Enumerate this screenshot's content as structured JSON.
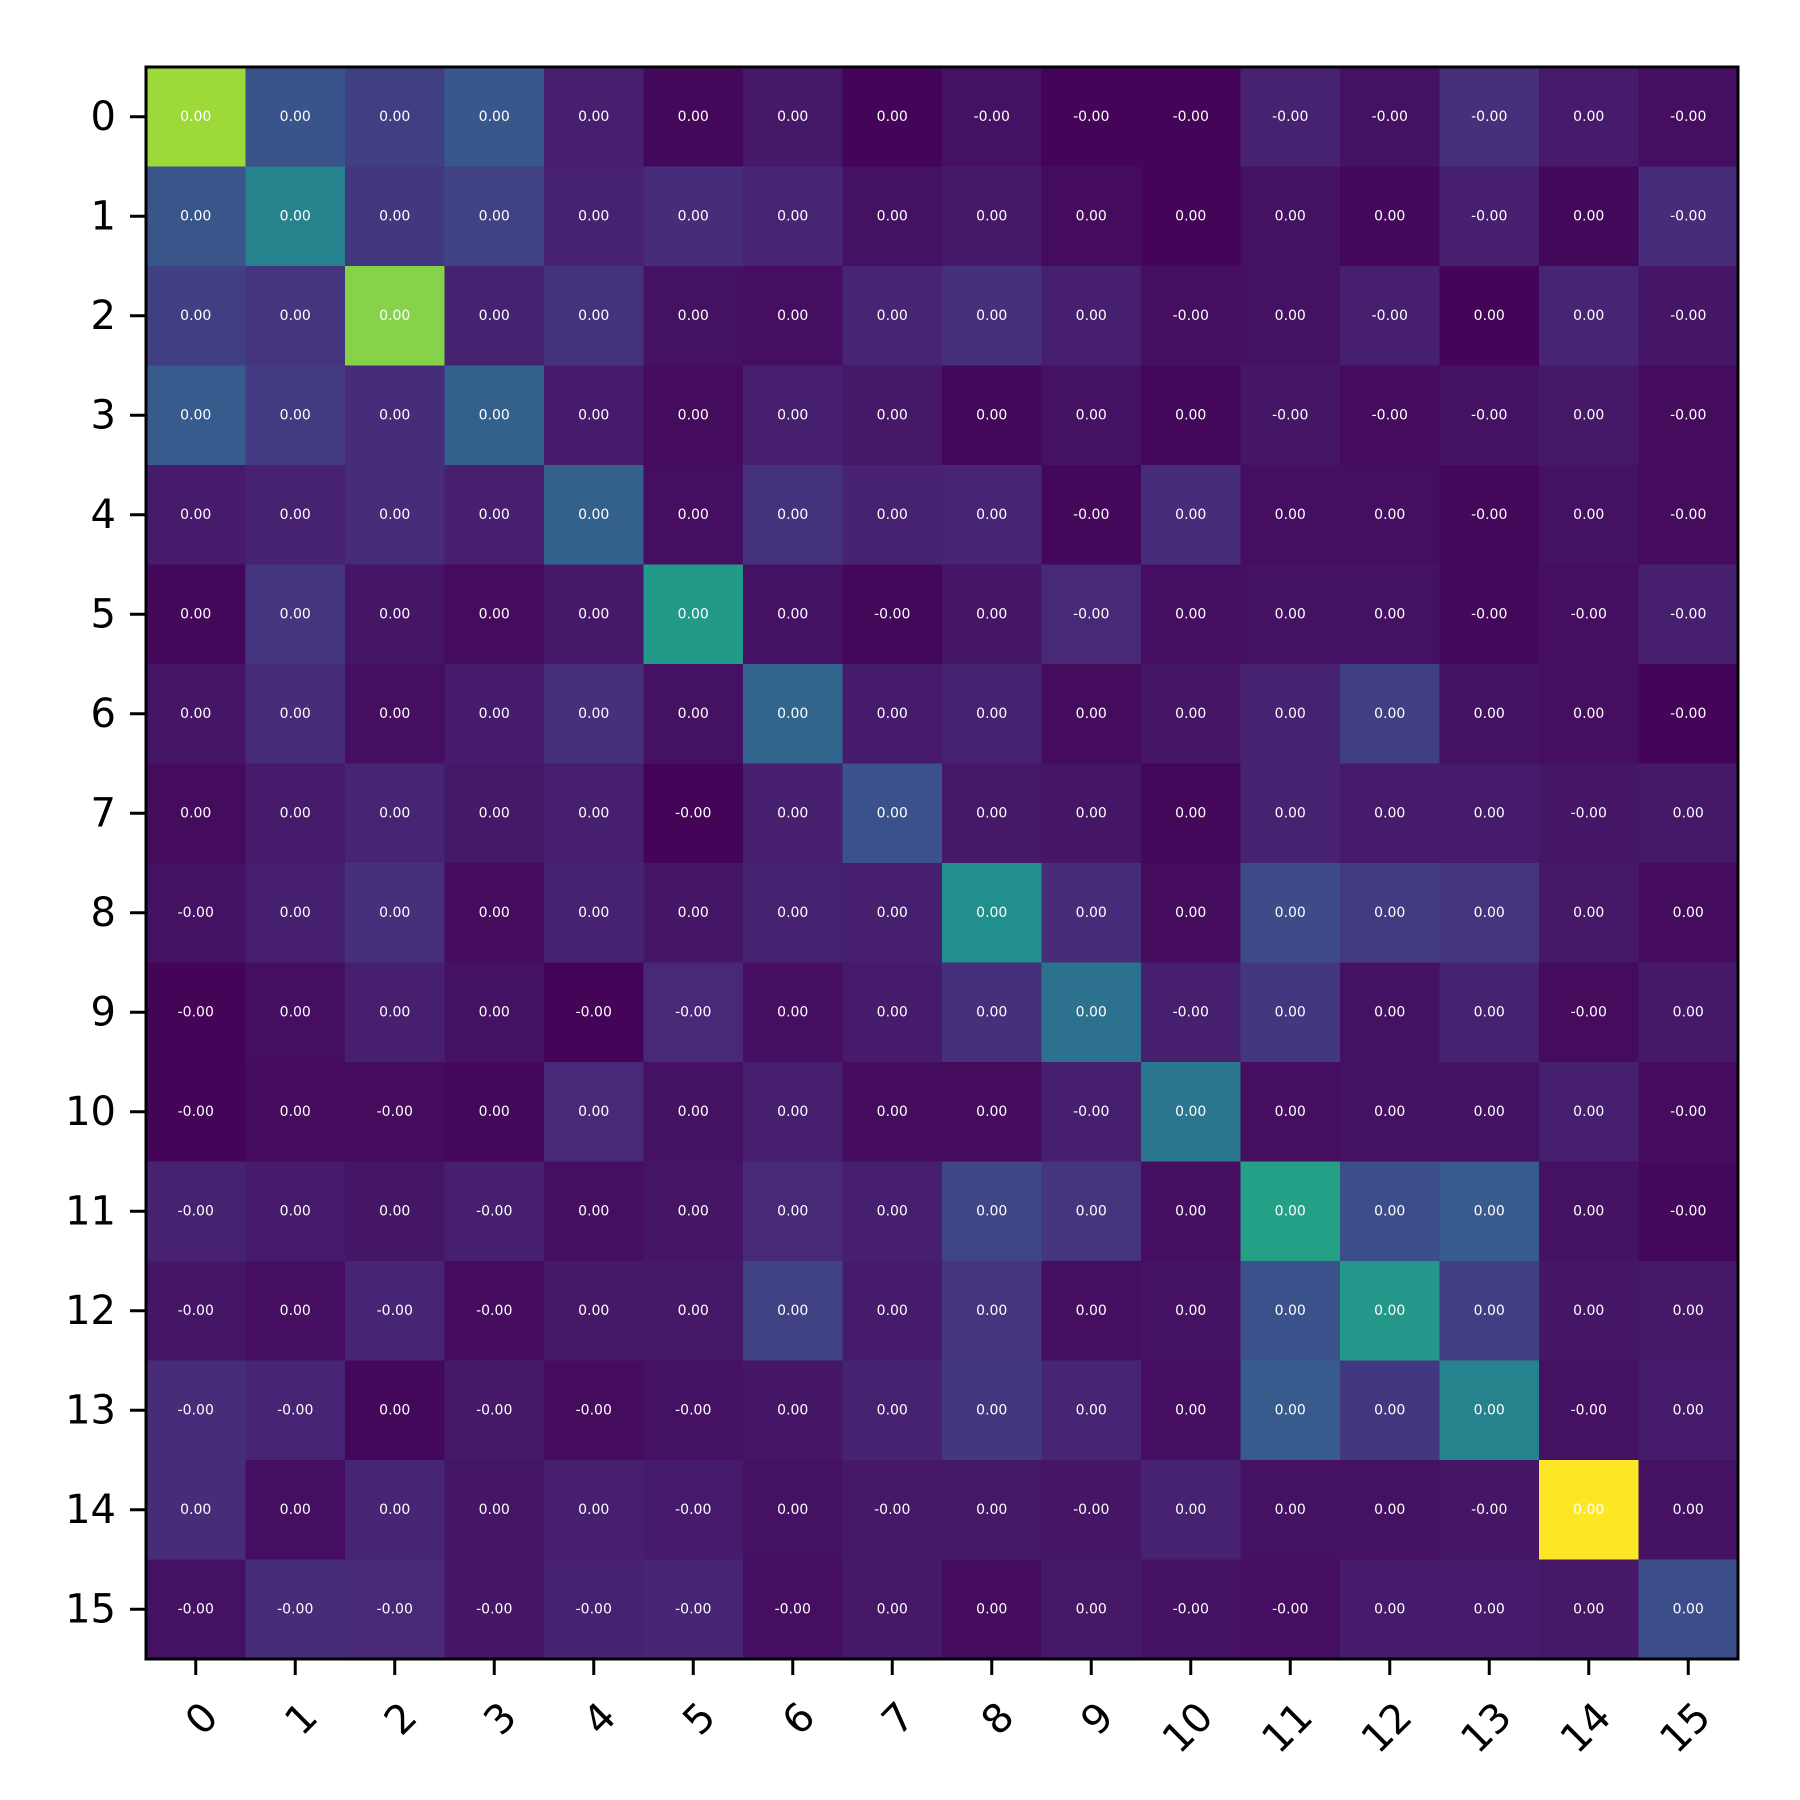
{
  "chart_data": {
    "type": "heatmap",
    "title": "",
    "xlabel": "",
    "ylabel": "",
    "x_ticks": [
      "0",
      "1",
      "2",
      "3",
      "4",
      "5",
      "6",
      "7",
      "8",
      "9",
      "10",
      "11",
      "12",
      "13",
      "14",
      "15"
    ],
    "y_ticks": [
      "0",
      "1",
      "2",
      "3",
      "4",
      "5",
      "6",
      "7",
      "8",
      "9",
      "10",
      "11",
      "12",
      "13",
      "14",
      "15"
    ],
    "colormap": "viridis",
    "grid": false,
    "legend": "none",
    "intensity": [
      [
        0.86,
        0.26,
        0.19,
        0.28,
        0.09,
        0.02,
        0.07,
        0.01,
        0.05,
        0.01,
        0.01,
        0.1,
        0.05,
        0.14,
        0.08,
        0.04
      ],
      [
        0.27,
        0.45,
        0.17,
        0.2,
        0.1,
        0.13,
        0.11,
        0.05,
        0.07,
        0.03,
        0.01,
        0.05,
        0.02,
        0.09,
        0.02,
        0.13
      ],
      [
        0.19,
        0.16,
        0.82,
        0.1,
        0.15,
        0.05,
        0.04,
        0.11,
        0.14,
        0.09,
        0.04,
        0.05,
        0.09,
        0.01,
        0.11,
        0.06
      ],
      [
        0.29,
        0.18,
        0.13,
        0.31,
        0.08,
        0.03,
        0.09,
        0.07,
        0.02,
        0.05,
        0.02,
        0.06,
        0.03,
        0.05,
        0.07,
        0.03
      ],
      [
        0.08,
        0.1,
        0.13,
        0.09,
        0.31,
        0.04,
        0.15,
        0.1,
        0.11,
        0.02,
        0.13,
        0.04,
        0.04,
        0.02,
        0.05,
        0.03
      ],
      [
        0.02,
        0.16,
        0.06,
        0.03,
        0.07,
        0.54,
        0.05,
        0.02,
        0.06,
        0.12,
        0.04,
        0.05,
        0.05,
        0.02,
        0.04,
        0.09
      ],
      [
        0.06,
        0.13,
        0.04,
        0.08,
        0.14,
        0.05,
        0.33,
        0.08,
        0.1,
        0.03,
        0.06,
        0.1,
        0.19,
        0.05,
        0.04,
        0.01
      ],
      [
        0.03,
        0.08,
        0.11,
        0.07,
        0.09,
        0.01,
        0.09,
        0.25,
        0.07,
        0.06,
        0.02,
        0.1,
        0.08,
        0.08,
        0.06,
        0.07
      ],
      [
        0.05,
        0.09,
        0.14,
        0.03,
        0.1,
        0.06,
        0.1,
        0.09,
        0.5,
        0.13,
        0.03,
        0.23,
        0.18,
        0.16,
        0.07,
        0.03
      ],
      [
        0.01,
        0.04,
        0.09,
        0.05,
        0.01,
        0.12,
        0.04,
        0.08,
        0.14,
        0.38,
        0.09,
        0.17,
        0.05,
        0.1,
        0.03,
        0.07
      ],
      [
        0.01,
        0.03,
        0.03,
        0.02,
        0.12,
        0.05,
        0.09,
        0.03,
        0.03,
        0.09,
        0.4,
        0.04,
        0.05,
        0.05,
        0.09,
        0.03
      ],
      [
        0.1,
        0.08,
        0.06,
        0.09,
        0.04,
        0.06,
        0.12,
        0.09,
        0.21,
        0.16,
        0.04,
        0.57,
        0.24,
        0.29,
        0.05,
        0.02
      ],
      [
        0.06,
        0.04,
        0.11,
        0.03,
        0.07,
        0.07,
        0.2,
        0.08,
        0.16,
        0.04,
        0.05,
        0.25,
        0.53,
        0.19,
        0.06,
        0.07
      ],
      [
        0.13,
        0.11,
        0.02,
        0.07,
        0.03,
        0.05,
        0.06,
        0.1,
        0.17,
        0.11,
        0.04,
        0.29,
        0.17,
        0.45,
        0.05,
        0.08
      ],
      [
        0.13,
        0.04,
        0.11,
        0.06,
        0.09,
        0.08,
        0.05,
        0.07,
        0.07,
        0.06,
        0.1,
        0.05,
        0.05,
        0.06,
        1.0,
        0.05
      ],
      [
        0.05,
        0.13,
        0.12,
        0.06,
        0.1,
        0.11,
        0.04,
        0.07,
        0.03,
        0.07,
        0.05,
        0.04,
        0.08,
        0.08,
        0.07,
        0.24
      ]
    ],
    "labels": [
      [
        "0.00",
        "0.00",
        "0.00",
        "0.00",
        "0.00",
        "0.00",
        "0.00",
        "0.00",
        "-0.00",
        "-0.00",
        "-0.00",
        "-0.00",
        "-0.00",
        "-0.00",
        "0.00",
        "-0.00"
      ],
      [
        "0.00",
        "0.00",
        "0.00",
        "0.00",
        "0.00",
        "0.00",
        "0.00",
        "0.00",
        "0.00",
        "0.00",
        "0.00",
        "0.00",
        "0.00",
        "-0.00",
        "0.00",
        "-0.00"
      ],
      [
        "0.00",
        "0.00",
        "0.00",
        "0.00",
        "0.00",
        "0.00",
        "0.00",
        "0.00",
        "0.00",
        "0.00",
        "-0.00",
        "0.00",
        "-0.00",
        "0.00",
        "0.00",
        "-0.00"
      ],
      [
        "0.00",
        "0.00",
        "0.00",
        "0.00",
        "0.00",
        "0.00",
        "0.00",
        "0.00",
        "0.00",
        "0.00",
        "0.00",
        "-0.00",
        "-0.00",
        "-0.00",
        "0.00",
        "-0.00"
      ],
      [
        "0.00",
        "0.00",
        "0.00",
        "0.00",
        "0.00",
        "0.00",
        "0.00",
        "0.00",
        "0.00",
        "-0.00",
        "0.00",
        "0.00",
        "0.00",
        "-0.00",
        "0.00",
        "-0.00"
      ],
      [
        "0.00",
        "0.00",
        "0.00",
        "0.00",
        "0.00",
        "0.00",
        "0.00",
        "-0.00",
        "0.00",
        "-0.00",
        "0.00",
        "0.00",
        "0.00",
        "-0.00",
        "-0.00",
        "-0.00"
      ],
      [
        "0.00",
        "0.00",
        "0.00",
        "0.00",
        "0.00",
        "0.00",
        "0.00",
        "0.00",
        "0.00",
        "0.00",
        "0.00",
        "0.00",
        "0.00",
        "0.00",
        "0.00",
        "-0.00"
      ],
      [
        "0.00",
        "0.00",
        "0.00",
        "0.00",
        "0.00",
        "-0.00",
        "0.00",
        "0.00",
        "0.00",
        "0.00",
        "0.00",
        "0.00",
        "0.00",
        "0.00",
        "-0.00",
        "0.00"
      ],
      [
        "-0.00",
        "0.00",
        "0.00",
        "0.00",
        "0.00",
        "0.00",
        "0.00",
        "0.00",
        "0.00",
        "0.00",
        "0.00",
        "0.00",
        "0.00",
        "0.00",
        "0.00",
        "0.00"
      ],
      [
        "-0.00",
        "0.00",
        "0.00",
        "0.00",
        "-0.00",
        "-0.00",
        "0.00",
        "0.00",
        "0.00",
        "0.00",
        "-0.00",
        "0.00",
        "0.00",
        "0.00",
        "-0.00",
        "0.00"
      ],
      [
        "-0.00",
        "0.00",
        "-0.00",
        "0.00",
        "0.00",
        "0.00",
        "0.00",
        "0.00",
        "0.00",
        "-0.00",
        "0.00",
        "0.00",
        "0.00",
        "0.00",
        "0.00",
        "-0.00"
      ],
      [
        "-0.00",
        "0.00",
        "0.00",
        "-0.00",
        "0.00",
        "0.00",
        "0.00",
        "0.00",
        "0.00",
        "0.00",
        "0.00",
        "0.00",
        "0.00",
        "0.00",
        "0.00",
        "-0.00"
      ],
      [
        "-0.00",
        "0.00",
        "-0.00",
        "-0.00",
        "0.00",
        "0.00",
        "0.00",
        "0.00",
        "0.00",
        "0.00",
        "0.00",
        "0.00",
        "0.00",
        "0.00",
        "0.00",
        "0.00"
      ],
      [
        "-0.00",
        "-0.00",
        "0.00",
        "-0.00",
        "-0.00",
        "-0.00",
        "0.00",
        "0.00",
        "0.00",
        "0.00",
        "0.00",
        "0.00",
        "0.00",
        "0.00",
        "-0.00",
        "0.00"
      ],
      [
        "0.00",
        "0.00",
        "0.00",
        "0.00",
        "0.00",
        "-0.00",
        "0.00",
        "-0.00",
        "0.00",
        "-0.00",
        "0.00",
        "0.00",
        "0.00",
        "-0.00",
        "0.00",
        "0.00"
      ],
      [
        "-0.00",
        "-0.00",
        "-0.00",
        "-0.00",
        "-0.00",
        "-0.00",
        "-0.00",
        "0.00",
        "0.00",
        "0.00",
        "-0.00",
        "-0.00",
        "0.00",
        "0.00",
        "0.00",
        "0.00"
      ]
    ]
  }
}
